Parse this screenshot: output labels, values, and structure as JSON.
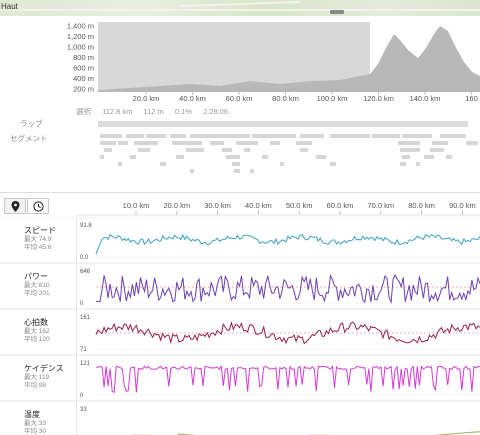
{
  "map": {
    "label": "Haut"
  },
  "elevation": {
    "y_ticks": [
      "1,400 m",
      "1,200 m",
      "1,000 m",
      "800 m",
      "600 m",
      "400 m",
      "200 m"
    ],
    "x_ticks": [
      "20.0 km",
      "40.0 km",
      "60.0 km",
      "80.0 km",
      "100.0 km",
      "120.0 km",
      "140.0 km",
      "160"
    ]
  },
  "sidebar": {
    "laps": "ラップ",
    "segments": "セグメント"
  },
  "lap": {
    "selection_label": "選択",
    "distance": "112.8 km",
    "elevation": "112 m",
    "grade": "0.1%",
    "time": "2:28:06"
  },
  "toolbar": {
    "pin_icon": "map-pin-icon",
    "clock_icon": "clock-icon"
  },
  "analysis_axis": {
    "x_ticks": [
      "10.0 km",
      "20.0 km",
      "30.0 km",
      "40.0 km",
      "50.0 km",
      "60.0 km",
      "70.0 km",
      "80.0 km",
      "90.0 km"
    ]
  },
  "metrics": [
    {
      "name": "スピード",
      "max_label": "最大 74.9",
      "avg_label": "平均 45.6",
      "y_max": "91.8",
      "y_min": "0.0",
      "color": "#3aa3c9"
    },
    {
      "name": "パワー",
      "max_label": "最大 810",
      "avg_label": "平均 201",
      "y_max": "646",
      "y_min": "0",
      "color": "#6a3fb5"
    },
    {
      "name": "心拍数",
      "max_label": "最大 162",
      "avg_label": "平均 120",
      "y_max": "161",
      "y_min": "71",
      "color": "#9a1e4d"
    },
    {
      "name": "ケイデンス",
      "max_label": "最大 119",
      "avg_label": "平均 98",
      "y_max": "121",
      "y_min": "0",
      "color": "#d63ad6"
    },
    {
      "name": "温度",
      "max_label": "最大 33",
      "avg_label": "平均 30",
      "y_max": "33",
      "y_min": "",
      "color": "#a9a25a"
    }
  ]
}
